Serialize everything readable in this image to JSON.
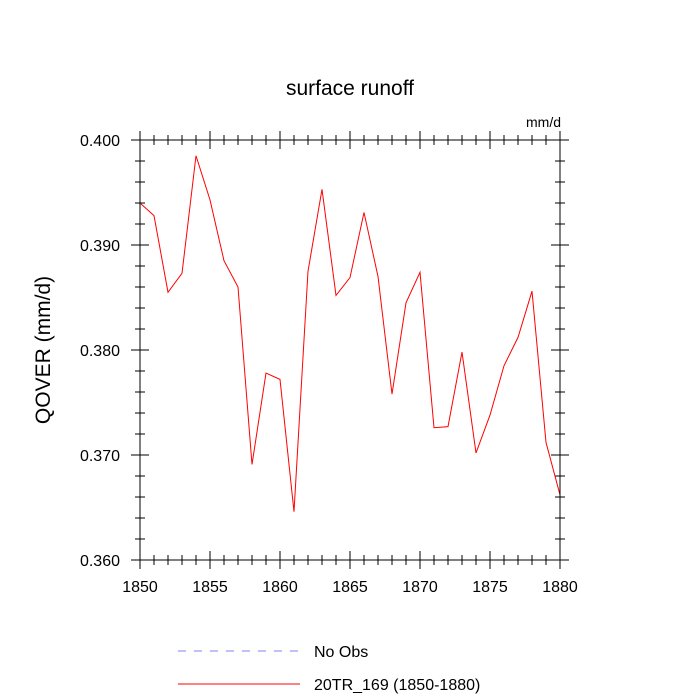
{
  "chart_data": {
    "type": "line",
    "title": "surface runoff",
    "units": "mm/d",
    "xlabel": "",
    "ylabel": "QOVER  (mm/d)",
    "xlim": [
      1850,
      1880
    ],
    "ylim": [
      0.36,
      0.4
    ],
    "x_ticks": [
      1850,
      1855,
      1860,
      1865,
      1870,
      1875,
      1880
    ],
    "x_tick_labels": [
      "1850",
      "1855",
      "1860",
      "1865",
      "1870",
      "1875",
      "1880"
    ],
    "y_ticks": [
      0.36,
      0.37,
      0.38,
      0.39,
      0.4
    ],
    "y_tick_labels": [
      "0.360",
      "0.370",
      "0.380",
      "0.390",
      "0.400"
    ],
    "legend": [
      {
        "name": "No Obs",
        "color": "#8080ff",
        "style": "dashed"
      },
      {
        "name": "20TR_169 (1850-1880)",
        "color": "#ff0000",
        "style": "solid"
      }
    ],
    "series": [
      {
        "name": "20TR_169 (1850-1880)",
        "color": "#ff0000",
        "x": [
          1850,
          1851,
          1852,
          1853,
          1854,
          1855,
          1856,
          1857,
          1858,
          1859,
          1860,
          1861,
          1862,
          1863,
          1864,
          1865,
          1866,
          1867,
          1868,
          1869,
          1870,
          1871,
          1872,
          1873,
          1874,
          1875,
          1876,
          1877,
          1878,
          1879,
          1880
        ],
        "values": [
          0.394,
          0.3928,
          0.3855,
          0.3873,
          0.3985,
          0.3943,
          0.3885,
          0.386,
          0.3691,
          0.3778,
          0.3772,
          0.3646,
          0.3875,
          0.3953,
          0.3852,
          0.3869,
          0.3931,
          0.387,
          0.3758,
          0.3845,
          0.3874,
          0.3726,
          0.3727,
          0.3798,
          0.3702,
          0.3738,
          0.3785,
          0.3812,
          0.3856,
          0.3712,
          0.3662
        ]
      }
    ]
  }
}
